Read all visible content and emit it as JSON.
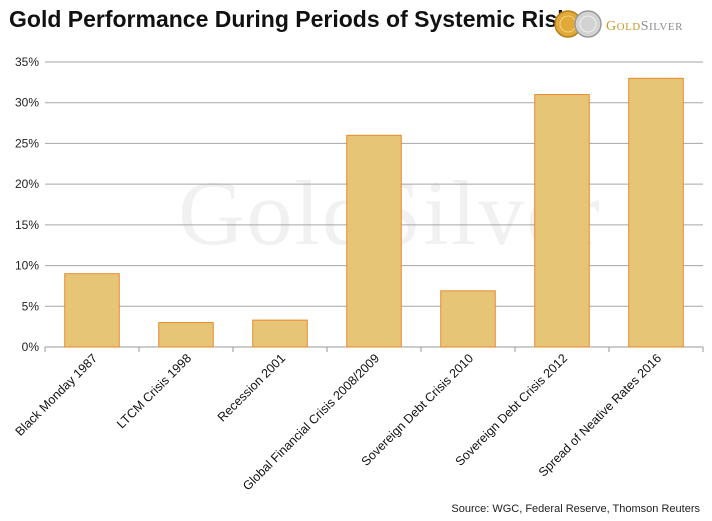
{
  "title": "Gold Performance During Periods of Systemic Risk",
  "logo": {
    "text": "GoldSilver",
    "coin_colors": [
      "#e0a93a",
      "#c8c8c8"
    ]
  },
  "watermark": "GoldSilver",
  "source": "Source: WGC, Federal Reserve, Thomson Reuters",
  "chart_data": {
    "type": "bar",
    "categories": [
      "Black Monday 1987",
      "LTCM Crisis 1998",
      "Recession 2001",
      "Global Financial Crisis 2008/2009",
      "Sovereign Debt Crisis 2010",
      "Sovereign Debt Crisis 2012",
      "Spread of Neative Rates 2016"
    ],
    "values": [
      9,
      3,
      3.3,
      26,
      6.9,
      31,
      33
    ],
    "ylim": [
      0,
      35
    ],
    "yticks": [
      0,
      5,
      10,
      15,
      20,
      25,
      30,
      35
    ],
    "ytick_labels": [
      "0%",
      "5%",
      "10%",
      "15%",
      "20%",
      "25%",
      "30%",
      "35%"
    ],
    "grid": true,
    "bar_fill": "#e6c577",
    "bar_stroke": "#e8892c"
  }
}
